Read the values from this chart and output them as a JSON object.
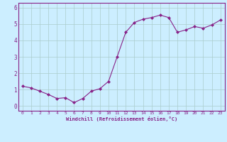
{
  "x": [
    0,
    1,
    2,
    3,
    4,
    5,
    6,
    7,
    8,
    9,
    10,
    11,
    12,
    13,
    14,
    15,
    16,
    17,
    18,
    19,
    20,
    21,
    22,
    23
  ],
  "y": [
    1.2,
    1.1,
    0.9,
    0.7,
    0.45,
    0.5,
    0.2,
    0.45,
    0.9,
    1.05,
    1.5,
    3.0,
    4.5,
    5.1,
    5.3,
    5.4,
    5.55,
    5.4,
    4.5,
    4.65,
    4.85,
    4.75,
    4.95,
    5.25
  ],
  "line_color": "#882288",
  "marker": "D",
  "marker_size": 2,
  "bg_color": "#cceeff",
  "grid_color": "#aacccc",
  "xlabel": "Windchill (Refroidissement éolien,°C)",
  "xlabel_color": "#882288",
  "tick_color": "#882288",
  "spine_color": "#882288",
  "ylim": [
    -0.3,
    6.3
  ],
  "xlim": [
    -0.5,
    23.5
  ],
  "yticks": [
    0,
    1,
    2,
    3,
    4,
    5,
    6
  ],
  "xticks": [
    0,
    1,
    2,
    3,
    4,
    5,
    6,
    7,
    8,
    9,
    10,
    11,
    12,
    13,
    14,
    15,
    16,
    17,
    18,
    19,
    20,
    21,
    22,
    23
  ]
}
